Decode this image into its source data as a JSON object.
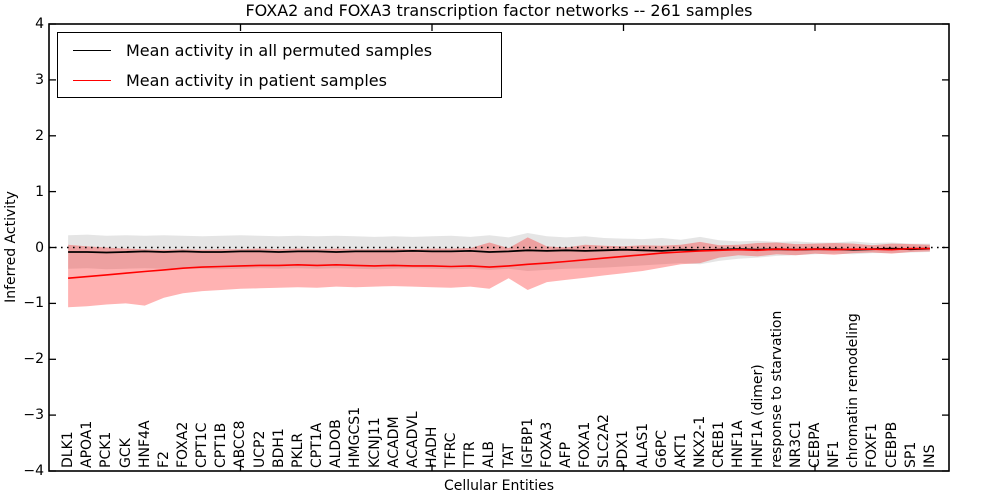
{
  "figure": {
    "title": "FOXA2 and FOXA3 transcription factor networks -- 261 samples",
    "xlabel": "Cellular Entities",
    "ylabel": "Inferred Activity",
    "background": "#ffffff"
  },
  "legend": {
    "entries": [
      {
        "label": "Mean activity in all permuted samples",
        "color": "#000000"
      },
      {
        "label": "Mean activity in patient samples",
        "color": "#ff0000"
      }
    ]
  },
  "axes": {
    "ylim": [
      -4,
      4
    ],
    "xlim": [
      0,
      47
    ],
    "y_tick_values": [
      4,
      3,
      2,
      1,
      0,
      -1,
      -2,
      -3,
      -4
    ],
    "y_tick_labels": [
      "4",
      "3",
      "2",
      "1",
      "0",
      "−1",
      "−2",
      "−3",
      "−4"
    ],
    "x_tick_values": [
      10,
      20,
      30,
      40
    ],
    "grid": "off",
    "tick_direction": "in"
  },
  "chart_data": {
    "type": "line",
    "title": "FOXA2 and FOXA3 transcription factor networks -- 261 samples",
    "xlabel": "Cellular Entities",
    "ylabel": "Inferred Activity",
    "ylim": [
      -4,
      4
    ],
    "legend_position": "upper left",
    "categories": [
      "DLK1",
      "APOA1",
      "PCK1",
      "GCK",
      "HNF4A",
      "F2",
      "FOXA2",
      "CPT1C",
      "CPT1B",
      "ABCC8",
      "UCP2",
      "BDH1",
      "PKLR",
      "CPT1A",
      "ALDOB",
      "HMGCS1",
      "KCNJ11",
      "ACADM",
      "ACADVL",
      "HADH",
      "TFRC",
      "TTR",
      "ALB",
      "TAT",
      "IGFBP1",
      "FOXA3",
      "AFP",
      "FOXA1",
      "SLC2A2",
      "PDX1",
      "ALAS1",
      "G6PC",
      "AKT1",
      "NKX2-1",
      "CREB1",
      "HNF1A",
      "HNF1A (dimer)",
      "response to starvation",
      "NR3C1",
      "CEBPA",
      "NF1",
      "chromatin remodeling",
      "FOXF1",
      "CEBPB",
      "SP1",
      "INS"
    ],
    "series": [
      {
        "name": "Mean activity in all permuted samples",
        "color": "#000000",
        "width": 1.8,
        "values": [
          -0.08,
          -0.08,
          -0.09,
          -0.08,
          -0.07,
          -0.08,
          -0.07,
          -0.08,
          -0.08,
          -0.07,
          -0.07,
          -0.08,
          -0.07,
          -0.07,
          -0.08,
          -0.07,
          -0.07,
          -0.07,
          -0.06,
          -0.07,
          -0.07,
          -0.06,
          -0.08,
          -0.07,
          -0.05,
          -0.06,
          -0.05,
          -0.06,
          -0.05,
          -0.04,
          -0.05,
          -0.06,
          -0.04,
          -0.05,
          -0.04,
          -0.03,
          -0.04,
          -0.03,
          -0.04,
          -0.03,
          -0.03,
          -0.04,
          -0.03,
          -0.02,
          -0.03,
          -0.02
        ]
      },
      {
        "name": "Mean activity in patient samples",
        "color": "#ff0000",
        "width": 1.6,
        "values": [
          -0.55,
          -0.52,
          -0.49,
          -0.46,
          -0.43,
          -0.4,
          -0.37,
          -0.35,
          -0.34,
          -0.33,
          -0.32,
          -0.32,
          -0.31,
          -0.32,
          -0.31,
          -0.32,
          -0.33,
          -0.32,
          -0.33,
          -0.33,
          -0.34,
          -0.33,
          -0.35,
          -0.33,
          -0.3,
          -0.28,
          -0.25,
          -0.22,
          -0.19,
          -0.16,
          -0.13,
          -0.1,
          -0.08,
          -0.06,
          -0.05,
          -0.04,
          -0.05,
          -0.03,
          -0.04,
          -0.03,
          -0.04,
          -0.03,
          -0.03,
          -0.04,
          -0.02,
          -0.02
        ]
      }
    ],
    "bands": [
      {
        "name": "permuted-samples-spread",
        "color": "rgba(0,0,0,0.10)",
        "upper": [
          0.22,
          0.23,
          0.21,
          0.22,
          0.21,
          0.22,
          0.21,
          0.2,
          0.21,
          0.22,
          0.21,
          0.2,
          0.21,
          0.2,
          0.21,
          0.2,
          0.19,
          0.2,
          0.19,
          0.2,
          0.21,
          0.19,
          0.22,
          0.18,
          0.26,
          0.2,
          0.18,
          0.2,
          0.17,
          0.16,
          0.15,
          0.17,
          0.14,
          0.19,
          0.13,
          0.11,
          0.12,
          0.1,
          0.11,
          0.09,
          0.09,
          0.11,
          0.08,
          0.09,
          0.07,
          0.07
        ],
        "lower": [
          -0.38,
          -0.37,
          -0.39,
          -0.38,
          -0.37,
          -0.38,
          -0.37,
          -0.38,
          -0.39,
          -0.38,
          -0.37,
          -0.38,
          -0.37,
          -0.38,
          -0.37,
          -0.38,
          -0.39,
          -0.38,
          -0.37,
          -0.38,
          -0.39,
          -0.38,
          -0.4,
          -0.38,
          -0.42,
          -0.4,
          -0.38,
          -0.37,
          -0.36,
          -0.34,
          -0.32,
          -0.3,
          -0.28,
          -0.3,
          -0.24,
          -0.2,
          -0.18,
          -0.15,
          -0.14,
          -0.12,
          -0.11,
          -0.12,
          -0.1,
          -0.1,
          -0.09,
          -0.08
        ]
      },
      {
        "name": "patient-samples-spread",
        "color": "rgba(255,0,0,0.30)",
        "upper": [
          0.05,
          0.02,
          0.0,
          -0.02,
          -0.03,
          -0.04,
          -0.03,
          -0.04,
          -0.03,
          -0.03,
          -0.02,
          -0.03,
          -0.02,
          -0.03,
          -0.02,
          -0.03,
          -0.03,
          -0.02,
          -0.03,
          -0.02,
          -0.02,
          -0.01,
          0.09,
          -0.01,
          0.18,
          0.02,
          0.0,
          0.05,
          0.03,
          0.02,
          0.04,
          0.03,
          0.05,
          0.1,
          0.04,
          0.05,
          0.08,
          0.09,
          0.06,
          0.07,
          0.08,
          0.07,
          0.04,
          0.07,
          0.06,
          0.05
        ],
        "lower": [
          -1.07,
          -1.05,
          -1.02,
          -1.0,
          -1.04,
          -0.9,
          -0.82,
          -0.78,
          -0.76,
          -0.74,
          -0.73,
          -0.72,
          -0.71,
          -0.72,
          -0.7,
          -0.71,
          -0.7,
          -0.69,
          -0.7,
          -0.71,
          -0.72,
          -0.7,
          -0.74,
          -0.55,
          -0.76,
          -0.62,
          -0.58,
          -0.54,
          -0.5,
          -0.46,
          -0.42,
          -0.36,
          -0.3,
          -0.28,
          -0.18,
          -0.14,
          -0.16,
          -0.12,
          -0.14,
          -0.11,
          -0.13,
          -0.1,
          -0.09,
          -0.11,
          -0.08,
          -0.07
        ]
      }
    ],
    "reference_line": {
      "y": 0,
      "style": "dotted",
      "color": "#000000"
    }
  }
}
